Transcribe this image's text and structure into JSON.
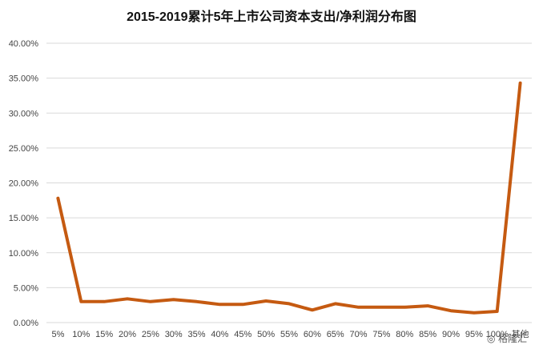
{
  "chart_data": {
    "type": "line",
    "title": "2015-2019累计5年上市公司资本支出/净利润分布图",
    "xlabel": "",
    "ylabel": "",
    "categories": [
      "5%",
      "10%",
      "15%",
      "20%",
      "25%",
      "30%",
      "35%",
      "40%",
      "45%",
      "50%",
      "55%",
      "60%",
      "65%",
      "70%",
      "75%",
      "80%",
      "85%",
      "90%",
      "95%",
      "100%",
      "其他"
    ],
    "series": [
      {
        "values": [
          17.8,
          3.0,
          3.0,
          3.4,
          3.0,
          3.3,
          3.0,
          2.6,
          2.6,
          3.1,
          2.7,
          1.8,
          2.7,
          2.2,
          2.2,
          2.2,
          2.4,
          1.7,
          1.4,
          1.6,
          34.3
        ]
      }
    ],
    "ylim": [
      0,
      40
    ],
    "yticks": [
      "0.00%",
      "5.00%",
      "10.00%",
      "15.00%",
      "20.00%",
      "25.00%",
      "30.00%",
      "35.00%",
      "40.00%"
    ],
    "grid": true,
    "legend": "none",
    "colors": {
      "line": "#c55a11",
      "grid": "#d9d9d9"
    }
  },
  "watermark": {
    "text": "格隆汇"
  }
}
